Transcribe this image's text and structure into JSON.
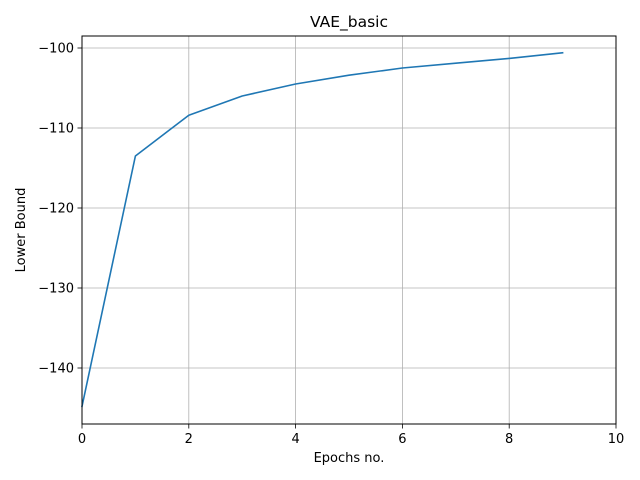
{
  "chart_data": {
    "type": "line",
    "title": "VAE_basic",
    "xlabel": "Epochs no.",
    "ylabel": "Lower Bound",
    "xlim": [
      0,
      10
    ],
    "ylim": [
      -147,
      -98.5
    ],
    "xticks": [
      0,
      2,
      4,
      6,
      8,
      10
    ],
    "yticks": [
      -140,
      -130,
      -120,
      -110,
      -100
    ],
    "xtick_labels": [
      "0",
      "2",
      "4",
      "6",
      "8",
      "10"
    ],
    "ytick_labels": [
      "−140",
      "−130",
      "−120",
      "−110",
      "−100"
    ],
    "grid": true,
    "series": [
      {
        "color": "#1f77b4",
        "x": [
          0,
          1,
          2,
          3,
          4,
          5,
          6,
          7,
          8,
          9
        ],
        "y": [
          -144.8,
          -113.5,
          -108.4,
          -106.0,
          -104.5,
          -103.4,
          -102.5,
          -101.9,
          -101.3,
          -100.6
        ]
      }
    ]
  }
}
